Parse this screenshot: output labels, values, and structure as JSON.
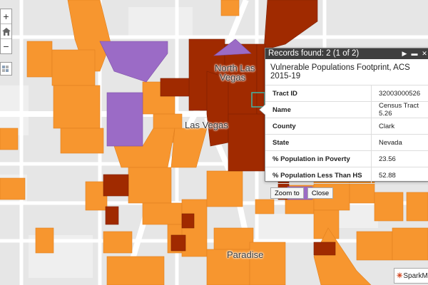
{
  "map": {
    "places": [
      {
        "name": "North Las",
        "key": "north-las-vegas-label-1"
      },
      {
        "name": "Vegas",
        "key": "north-las-vegas-label-2"
      },
      {
        "name": "Las Vegas",
        "key": "las-vegas-label"
      },
      {
        "name": "Paradise",
        "key": "paradise-label"
      }
    ],
    "colors": {
      "background": "#e6e6e6",
      "road": "#ffffff",
      "orange": "#f7962f",
      "darkred": "#a02a00",
      "purple": "#9b6bc6",
      "popup_header": "#3f3f3f",
      "highlight": "#3fb8a8"
    }
  },
  "controls": {
    "zoom_in": "+",
    "home_icon": "home-icon",
    "zoom_out": "−",
    "layers_icon": "layers-icon"
  },
  "popup": {
    "records_found": "Records found: 2 (1 of 2)",
    "title": "Vulnerable Populations Footprint, ACS 2015-19",
    "fields": [
      {
        "label": "Tract ID",
        "value": "32003000526"
      },
      {
        "label": "Name",
        "value": "Census Tract 5.26"
      },
      {
        "label": "County",
        "value": "Clark"
      },
      {
        "label": "State",
        "value": "Nevada"
      },
      {
        "label": "% Population in Poverty",
        "value": "23.56"
      },
      {
        "label": "% Population Less Than HS",
        "value": "52.88"
      }
    ],
    "zoom_to": "Zoom to",
    "close": "Close",
    "icons": [
      "next-arrow-icon",
      "minimize-icon",
      "close-icon"
    ]
  },
  "attribution": {
    "logo_text": "SparkMap"
  }
}
